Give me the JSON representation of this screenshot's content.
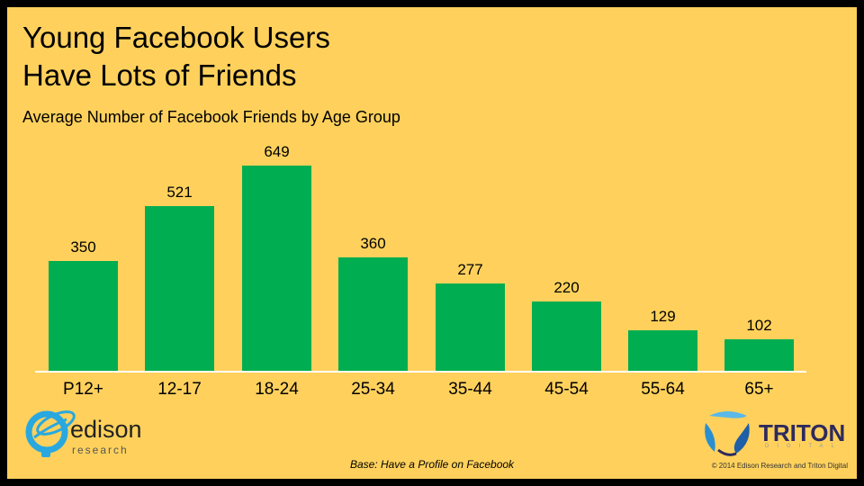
{
  "title_line1": "Young Facebook Users",
  "title_line2": "Have Lots of Friends",
  "subtitle": "Average Number  of Facebook Friends by Age Group",
  "footnote": "Base: Have  a Profile on Facebook",
  "copyright": "© 2014 Edison Research and Triton Digital",
  "logos": {
    "edison": {
      "word": "edison",
      "sub": "research"
    },
    "triton": {
      "word": "TRITON",
      "sub": "DIGITAL"
    }
  },
  "colors": {
    "background": "#FFD15C",
    "bar": "#00AD50",
    "axis": "#FFFFFF"
  },
  "bars": [
    {
      "label": "P12+",
      "value": "350"
    },
    {
      "label": "12-17",
      "value": "521"
    },
    {
      "label": "18-24",
      "value": "649"
    },
    {
      "label": "25-34",
      "value": "360"
    },
    {
      "label": "35-44",
      "value": "277"
    },
    {
      "label": "45-54",
      "value": "220"
    },
    {
      "label": "55-64",
      "value": "129"
    },
    {
      "label": "65+",
      "value": "102"
    }
  ],
  "chart_data": {
    "type": "bar",
    "title": "Young Facebook Users Have Lots of Friends",
    "subtitle": "Average Number of Facebook Friends by Age Group",
    "categories": [
      "P12+",
      "12-17",
      "18-24",
      "25-34",
      "35-44",
      "45-54",
      "55-64",
      "65+"
    ],
    "values": [
      350,
      521,
      649,
      360,
      277,
      220,
      129,
      102
    ],
    "xlabel": "",
    "ylabel": "",
    "ylim": [
      0,
      649
    ],
    "grid": false,
    "data_labels": true,
    "legend": null,
    "annotations": [
      "Base: Have a Profile on Facebook",
      "© 2014 Edison Research and Triton Digital"
    ]
  }
}
